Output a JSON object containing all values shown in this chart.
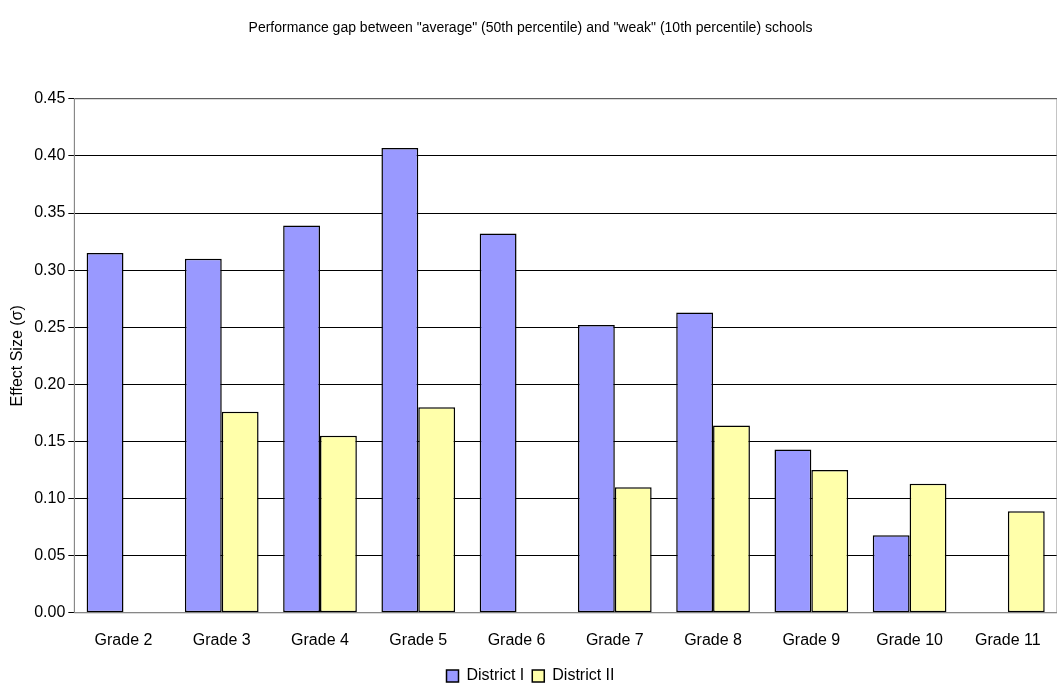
{
  "chart_data": {
    "type": "bar",
    "title": "Performance gap between \"average\" (50th percentile) and \"weak\" (10th percentile) schools",
    "ylabel": "Effect Size (σ)",
    "categories": [
      "Grade 2",
      "Grade 3",
      "Grade 4",
      "Grade 5",
      "Grade 6",
      "Grade 7",
      "Grade 8",
      "Grade 9",
      "Grade 10",
      "Grade 11"
    ],
    "series": [
      {
        "name": "District I",
        "color": "#9999ff",
        "values": [
          0.315,
          0.31,
          0.339,
          0.407,
          0.332,
          0.252,
          0.263,
          0.143,
          0.068,
          null
        ]
      },
      {
        "name": "District II",
        "color": "#ffffaa",
        "values": [
          null,
          0.176,
          0.155,
          0.18,
          null,
          0.11,
          0.164,
          0.125,
          0.113,
          0.089
        ]
      }
    ],
    "ylim": [
      0,
      0.45
    ],
    "yticks": [
      {
        "value": 0,
        "label": "0.00"
      },
      {
        "value": 0.05,
        "label": "0.05"
      },
      {
        "value": 0.1,
        "label": "0.10"
      },
      {
        "value": 0.15,
        "label": "0.15"
      },
      {
        "value": 0.2,
        "label": "0.20"
      },
      {
        "value": 0.25,
        "label": "0.25"
      },
      {
        "value": 0.3,
        "label": "0.30"
      },
      {
        "value": 0.35,
        "label": "0.35"
      },
      {
        "value": 0.4,
        "label": "0.40"
      },
      {
        "value": 0.45,
        "label": "0.45"
      }
    ],
    "grid": "y",
    "legend": "bottom"
  }
}
